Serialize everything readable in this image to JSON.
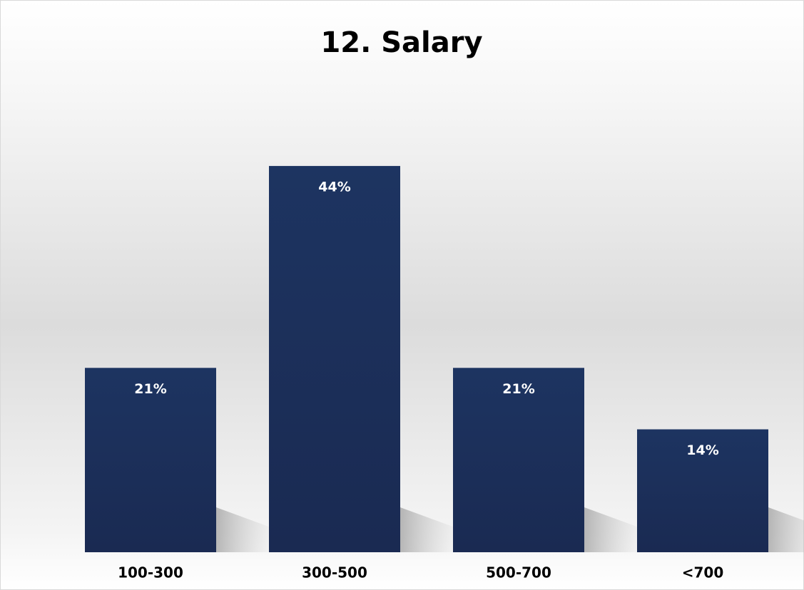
{
  "chart_data": {
    "type": "bar",
    "title": "12. Salary",
    "categories": [
      "100-300",
      "300-500",
      "500-700",
      "<700"
    ],
    "values": [
      21,
      44,
      21,
      14
    ],
    "value_labels": [
      "21%",
      "44%",
      "21%",
      "14%"
    ],
    "color": "#1c2f5e"
  }
}
